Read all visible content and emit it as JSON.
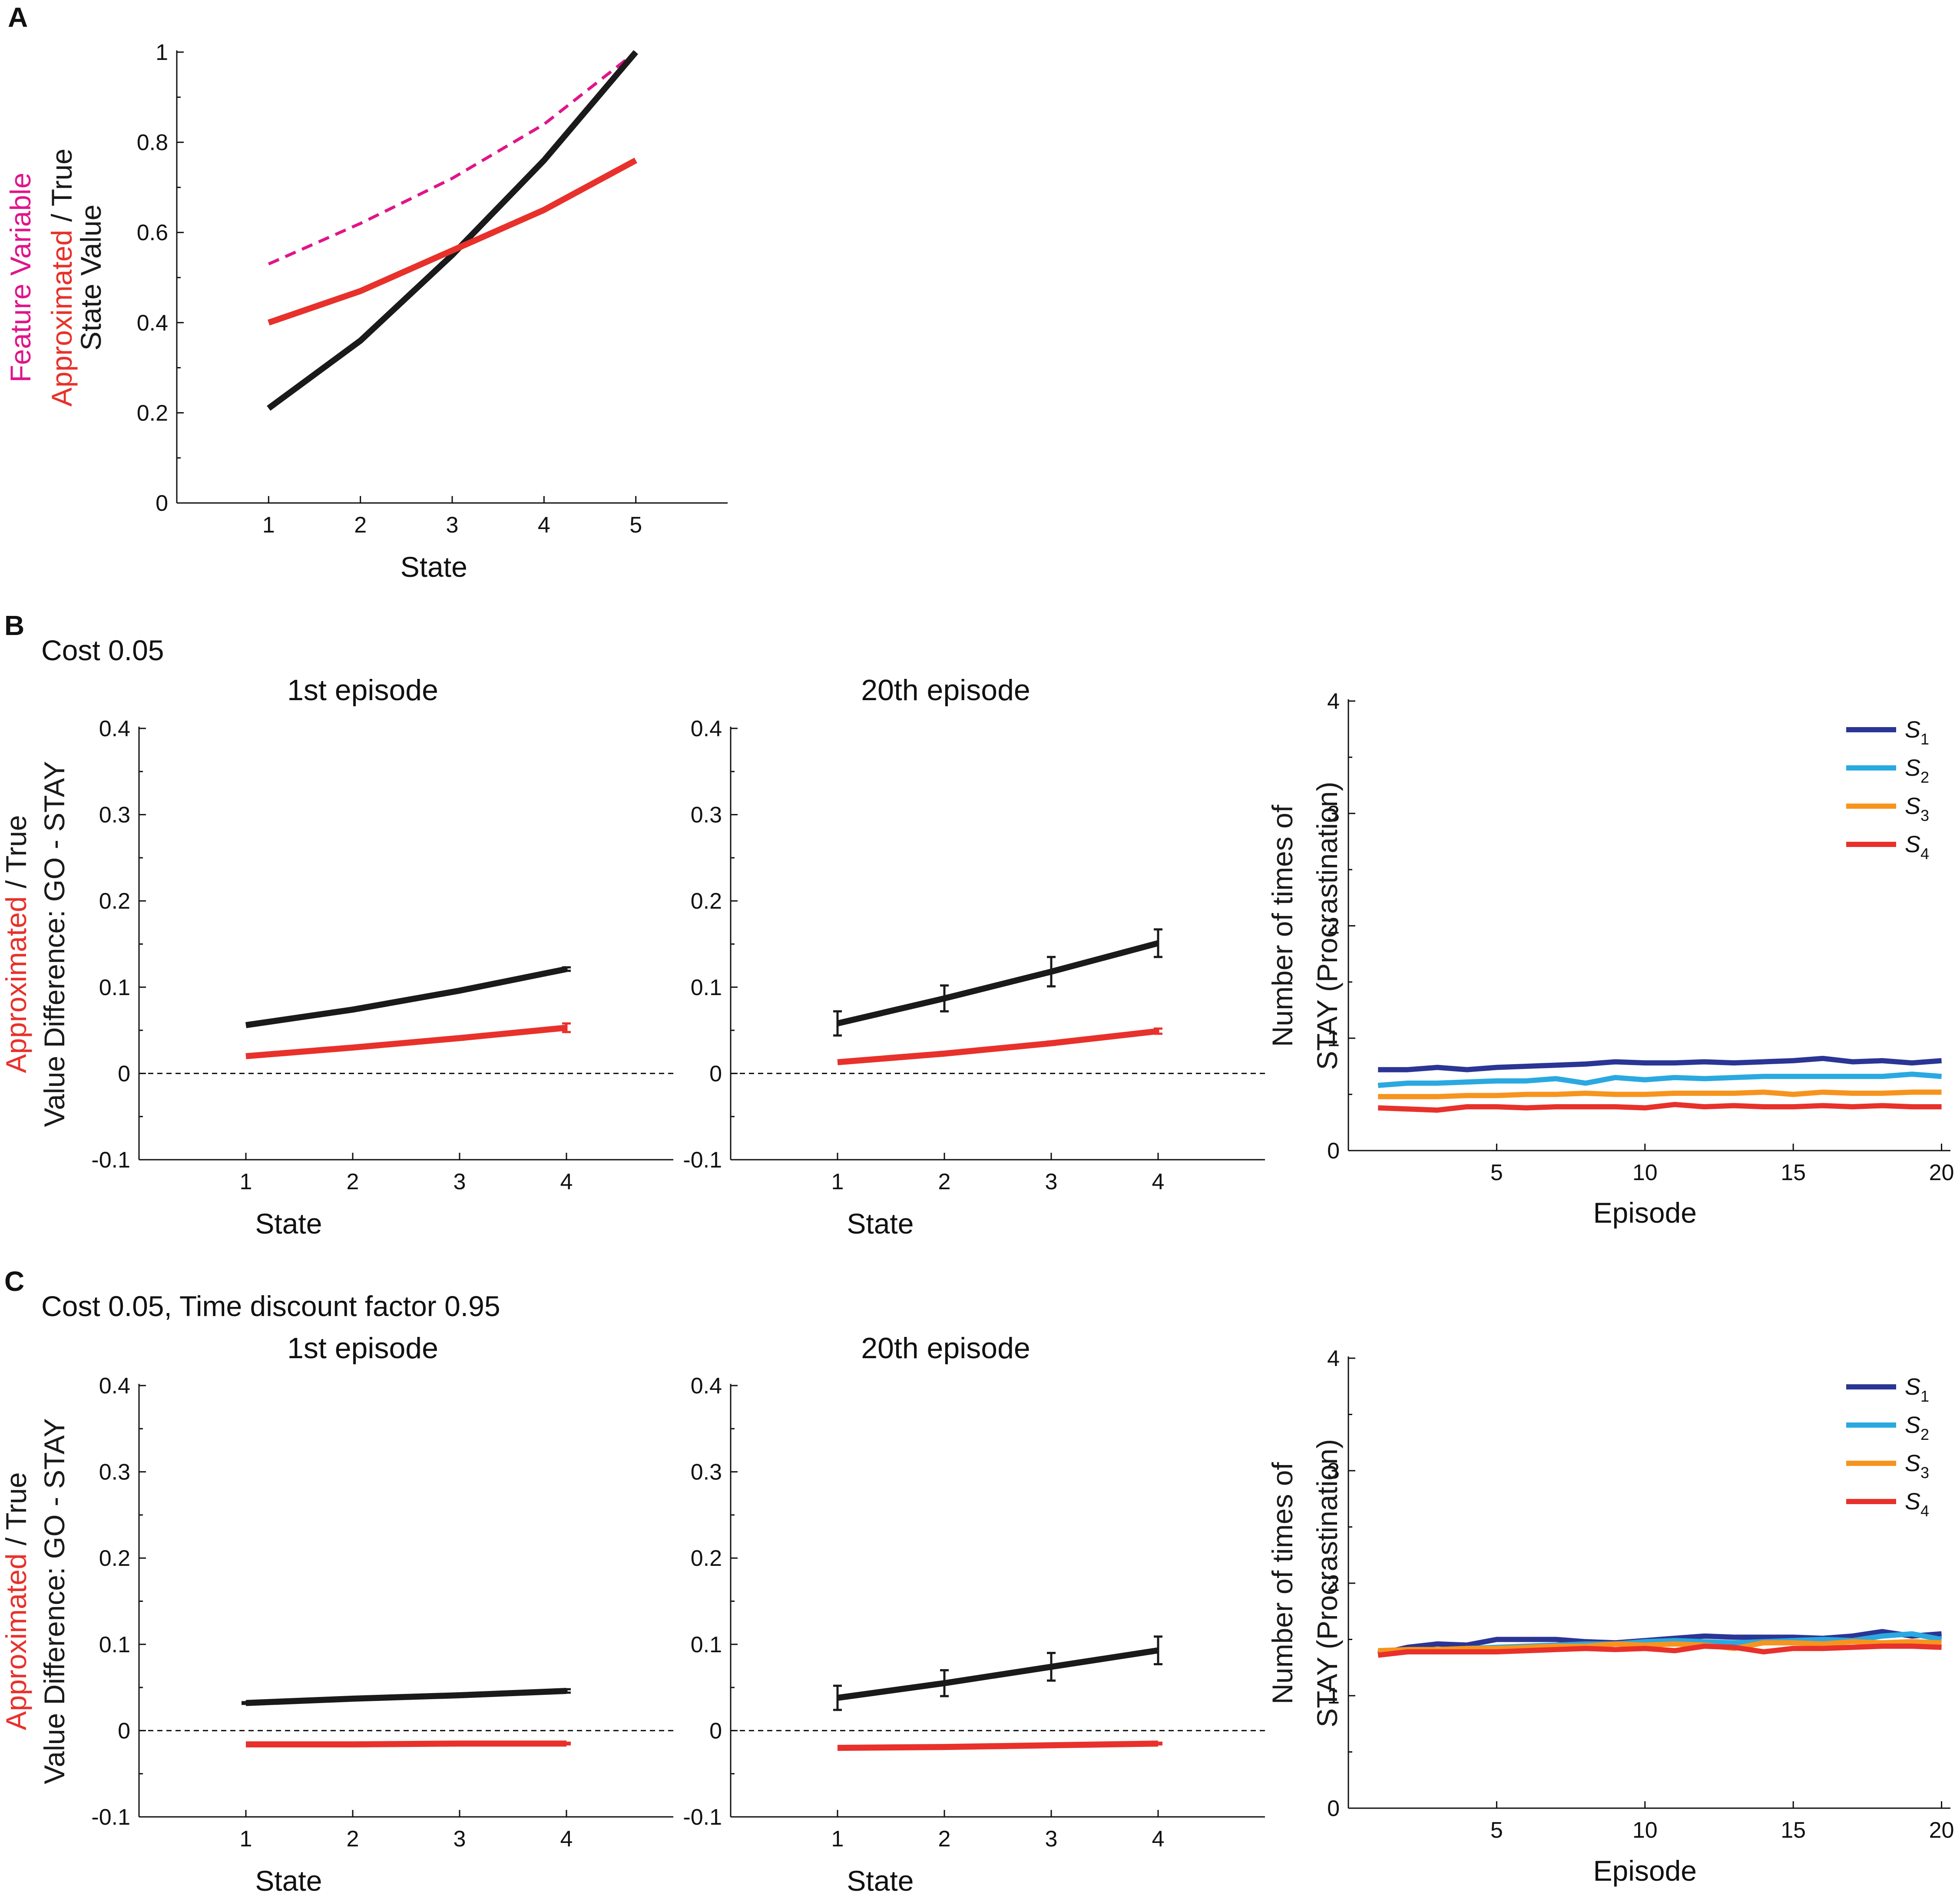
{
  "panels": {
    "A": {
      "label": "A"
    },
    "B": {
      "label": "B",
      "note": "Cost 0.05"
    },
    "C": {
      "label": "C",
      "note": "Cost 0.05, Time discount factor 0.95"
    }
  },
  "colors": {
    "true": "#1a1a1a",
    "approx": "#e8312b",
    "feature": "#e0158a",
    "s1": "#2b3594",
    "s2": "#2aa9e0",
    "s3": "#f7941d",
    "s4": "#e8312b"
  },
  "chart_data": [
    {
      "id": "A",
      "type": "line",
      "xlabel": "State",
      "ylabel_parts": [
        {
          "text": "Feature Variable",
          "color": "#e0158a",
          "line": 0
        },
        {
          "text": "Approximated",
          "color": "#e8312b",
          "line": 1
        },
        {
          "text": " / True",
          "color": "#1a1a1a",
          "line": 1
        },
        {
          "text": "State Value",
          "color": "#1a1a1a",
          "line": 2
        }
      ],
      "xlim": [
        0,
        6
      ],
      "ylim": [
        0,
        1
      ],
      "xticks": [
        1,
        2,
        3,
        4,
        5
      ],
      "yticks": [
        0,
        0.2,
        0.4,
        0.6,
        0.8,
        1
      ],
      "ytick_labels": [
        "0",
        "0.2",
        "0.4",
        "0.6",
        "0.8",
        "1"
      ],
      "x": [
        1,
        2,
        3,
        4,
        5
      ],
      "series": [
        {
          "name": "Feature Variable",
          "color": "#e0158a",
          "dashed": true,
          "values": [
            0.53,
            0.62,
            0.72,
            0.84,
            1.0
          ]
        },
        {
          "name": "True",
          "color": "#1a1a1a",
          "values": [
            0.21,
            0.36,
            0.55,
            0.76,
            1.0
          ]
        },
        {
          "name": "Approximated",
          "color": "#e8312b",
          "values": [
            0.4,
            0.47,
            0.56,
            0.65,
            0.76
          ]
        }
      ]
    },
    {
      "id": "B1",
      "type": "line",
      "title": "1st episode",
      "xlabel": "State",
      "ylabel_parts": [
        {
          "text": "Approximated",
          "color": "#e8312b",
          "line": 0
        },
        {
          "text": " / True",
          "color": "#1a1a1a",
          "line": 0
        },
        {
          "text": "Value Difference: GO - STAY",
          "color": "#1a1a1a",
          "line": 1
        }
      ],
      "xlim": [
        0,
        5
      ],
      "ylim": [
        -0.1,
        0.4
      ],
      "xticks": [
        1,
        2,
        3,
        4
      ],
      "yticks": [
        -0.1,
        0,
        0.1,
        0.2,
        0.3,
        0.4
      ],
      "ytick_labels": [
        "-0.1",
        "0",
        "0.1",
        "0.2",
        "0.3",
        "0.4"
      ],
      "zero_line": true,
      "x": [
        1,
        2,
        3,
        4
      ],
      "series": [
        {
          "name": "True",
          "color": "#1a1a1a",
          "values": [
            0.056,
            0.074,
            0.096,
            0.121
          ],
          "err": [
            0,
            0,
            0,
            0.002
          ]
        },
        {
          "name": "Approximated",
          "color": "#e8312b",
          "values": [
            0.02,
            0.03,
            0.041,
            0.053
          ],
          "err": [
            0,
            0,
            0.002,
            0.005
          ]
        }
      ]
    },
    {
      "id": "B2",
      "type": "line",
      "title": "20th episode",
      "xlabel": "State",
      "xlim": [
        0,
        5
      ],
      "ylim": [
        -0.1,
        0.4
      ],
      "xticks": [
        1,
        2,
        3,
        4
      ],
      "yticks": [
        -0.1,
        0,
        0.1,
        0.2,
        0.3,
        0.4
      ],
      "ytick_labels": [
        "-0.1",
        "0",
        "0.1",
        "0.2",
        "0.3",
        "0.4"
      ],
      "zero_line": true,
      "x": [
        1,
        2,
        3,
        4
      ],
      "series": [
        {
          "name": "True",
          "color": "#1a1a1a",
          "values": [
            0.058,
            0.087,
            0.118,
            0.151
          ],
          "err": [
            0.014,
            0.015,
            0.017,
            0.016
          ]
        },
        {
          "name": "Approximated",
          "color": "#e8312b",
          "values": [
            0.013,
            0.023,
            0.035,
            0.049
          ],
          "err": [
            0,
            0,
            0.002,
            0.003
          ]
        }
      ]
    },
    {
      "id": "B3",
      "type": "line",
      "xlabel": "Episode",
      "ylabel_parts": [
        {
          "text": "Number of times of",
          "color": "#1a1a1a",
          "line": 0
        },
        {
          "text": "STAY (Procrastination)",
          "color": "#1a1a1a",
          "line": 1
        }
      ],
      "xlim": [
        0,
        20.3
      ],
      "ylim": [
        0,
        4
      ],
      "xticks": [
        5,
        10,
        15,
        20
      ],
      "yticks": [
        0,
        1,
        2,
        3,
        4
      ],
      "ytick_labels": [
        "0",
        "1",
        "2",
        "3",
        "4"
      ],
      "legend": {
        "position": "top-right"
      },
      "x": [
        1,
        2,
        3,
        4,
        5,
        6,
        7,
        8,
        9,
        10,
        11,
        12,
        13,
        14,
        15,
        16,
        17,
        18,
        19,
        20
      ],
      "series": [
        {
          "name": "S",
          "sub": "1",
          "color": "#2b3594",
          "values": [
            0.72,
            0.72,
            0.74,
            0.72,
            0.74,
            0.75,
            0.76,
            0.77,
            0.79,
            0.78,
            0.78,
            0.79,
            0.78,
            0.79,
            0.8,
            0.82,
            0.79,
            0.8,
            0.78,
            0.8
          ]
        },
        {
          "name": "S",
          "sub": "2",
          "color": "#2aa9e0",
          "values": [
            0.58,
            0.6,
            0.6,
            0.61,
            0.62,
            0.62,
            0.64,
            0.6,
            0.65,
            0.63,
            0.65,
            0.64,
            0.65,
            0.66,
            0.66,
            0.66,
            0.66,
            0.66,
            0.68,
            0.66
          ]
        },
        {
          "name": "S",
          "sub": "3",
          "color": "#f7941d",
          "values": [
            0.48,
            0.48,
            0.48,
            0.49,
            0.49,
            0.5,
            0.5,
            0.51,
            0.5,
            0.5,
            0.51,
            0.51,
            0.51,
            0.52,
            0.5,
            0.52,
            0.51,
            0.51,
            0.52,
            0.52
          ]
        },
        {
          "name": "S",
          "sub": "4",
          "color": "#e8312b",
          "values": [
            0.38,
            0.37,
            0.36,
            0.39,
            0.39,
            0.38,
            0.39,
            0.39,
            0.39,
            0.38,
            0.41,
            0.39,
            0.4,
            0.39,
            0.39,
            0.4,
            0.39,
            0.4,
            0.39,
            0.39
          ]
        }
      ]
    },
    {
      "id": "C1",
      "type": "line",
      "title": "1st episode",
      "xlabel": "State",
      "ylabel_parts": [
        {
          "text": "Approximated",
          "color": "#e8312b",
          "line": 0
        },
        {
          "text": " / True",
          "color": "#1a1a1a",
          "line": 0
        },
        {
          "text": "Value Difference: GO - STAY",
          "color": "#1a1a1a",
          "line": 1
        }
      ],
      "xlim": [
        0,
        5
      ],
      "ylim": [
        -0.1,
        0.4
      ],
      "xticks": [
        1,
        2,
        3,
        4
      ],
      "yticks": [
        -0.1,
        0,
        0.1,
        0.2,
        0.3,
        0.4
      ],
      "ytick_labels": [
        "-0.1",
        "0",
        "0.1",
        "0.2",
        "0.3",
        "0.4"
      ],
      "zero_line": true,
      "x": [
        1,
        2,
        3,
        4
      ],
      "series": [
        {
          "name": "True",
          "color": "#1a1a1a",
          "values": [
            0.032,
            0.037,
            0.041,
            0.046
          ],
          "err": [
            0.001,
            0,
            0,
            0.002
          ]
        },
        {
          "name": "Approximated",
          "color": "#e8312b",
          "values": [
            -0.016,
            -0.016,
            -0.015,
            -0.015
          ],
          "err": [
            0,
            0,
            0,
            0.001
          ]
        }
      ]
    },
    {
      "id": "C2",
      "type": "line",
      "title": "20th episode",
      "xlabel": "State",
      "xlim": [
        0,
        5
      ],
      "ylim": [
        -0.1,
        0.4
      ],
      "xticks": [
        1,
        2,
        3,
        4
      ],
      "yticks": [
        -0.1,
        0,
        0.1,
        0.2,
        0.3,
        0.4
      ],
      "ytick_labels": [
        "-0.1",
        "0",
        "0.1",
        "0.2",
        "0.3",
        "0.4"
      ],
      "zero_line": true,
      "x": [
        1,
        2,
        3,
        4
      ],
      "series": [
        {
          "name": "True",
          "color": "#1a1a1a",
          "values": [
            0.038,
            0.055,
            0.074,
            0.093
          ],
          "err": [
            0.014,
            0.015,
            0.016,
            0.016
          ]
        },
        {
          "name": "Approximated",
          "color": "#e8312b",
          "values": [
            -0.02,
            -0.019,
            -0.017,
            -0.015
          ],
          "err": [
            0,
            0,
            0,
            0.001
          ]
        }
      ]
    },
    {
      "id": "C3",
      "type": "line",
      "xlabel": "Episode",
      "ylabel_parts": [
        {
          "text": "Number of times of",
          "color": "#1a1a1a",
          "line": 0
        },
        {
          "text": "STAY (Procrastination)",
          "color": "#1a1a1a",
          "line": 1
        }
      ],
      "xlim": [
        0,
        20.3
      ],
      "ylim": [
        0,
        4
      ],
      "xticks": [
        5,
        10,
        15,
        20
      ],
      "yticks": [
        0,
        1,
        2,
        3,
        4
      ],
      "ytick_labels": [
        "0",
        "1",
        "2",
        "3",
        "4"
      ],
      "legend": {
        "position": "top-right"
      },
      "x": [
        1,
        2,
        3,
        4,
        5,
        6,
        7,
        8,
        9,
        10,
        11,
        12,
        13,
        14,
        15,
        16,
        17,
        18,
        19,
        20
      ],
      "series": [
        {
          "name": "S",
          "sub": "1",
          "color": "#2b3594",
          "values": [
            1.37,
            1.43,
            1.46,
            1.45,
            1.5,
            1.5,
            1.5,
            1.48,
            1.47,
            1.49,
            1.51,
            1.53,
            1.52,
            1.52,
            1.52,
            1.51,
            1.53,
            1.57,
            1.53,
            1.55
          ]
        },
        {
          "name": "S",
          "sub": "2",
          "color": "#2aa9e0",
          "values": [
            1.38,
            1.4,
            1.41,
            1.42,
            1.43,
            1.44,
            1.45,
            1.46,
            1.46,
            1.48,
            1.49,
            1.48,
            1.47,
            1.48,
            1.49,
            1.5,
            1.49,
            1.53,
            1.55,
            1.5
          ]
        },
        {
          "name": "S",
          "sub": "3",
          "color": "#f7941d",
          "values": [
            1.4,
            1.41,
            1.41,
            1.42,
            1.42,
            1.43,
            1.44,
            1.44,
            1.46,
            1.45,
            1.46,
            1.45,
            1.42,
            1.47,
            1.47,
            1.46,
            1.48,
            1.47,
            1.48,
            1.47
          ]
        },
        {
          "name": "S",
          "sub": "4",
          "color": "#e8312b",
          "values": [
            1.36,
            1.39,
            1.39,
            1.39,
            1.39,
            1.4,
            1.41,
            1.42,
            1.41,
            1.42,
            1.4,
            1.44,
            1.43,
            1.39,
            1.42,
            1.42,
            1.43,
            1.44,
            1.44,
            1.43
          ]
        }
      ]
    }
  ]
}
